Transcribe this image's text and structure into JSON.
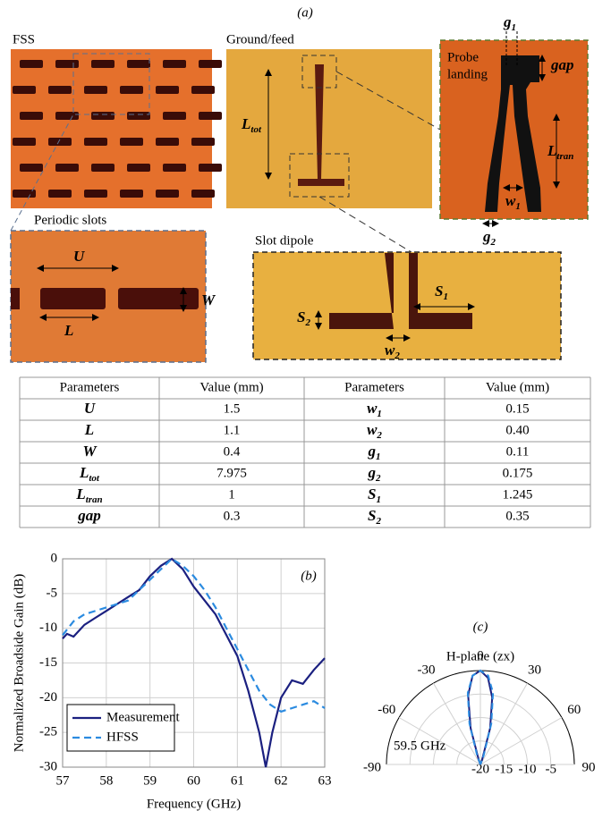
{
  "panel_a": {
    "label": "(a)",
    "fss": "FSS",
    "ground_feed": "Ground/feed",
    "probe_landing": [
      "Probe",
      "landing"
    ],
    "periodic_slots": "Periodic slots",
    "slot_dipole": "Slot dipole",
    "dims": {
      "g1": {
        "base": "g",
        "sub": "1"
      },
      "gap": {
        "base": "gap"
      },
      "L_tran": {
        "base": "L",
        "sub": "tran"
      },
      "w1": {
        "base": "w",
        "sub": "1"
      },
      "g2": {
        "base": "g",
        "sub": "2"
      },
      "L_tot": {
        "base": "L",
        "sub": "tot"
      },
      "U": {
        "base": "U"
      },
      "W": {
        "base": "W"
      },
      "L": {
        "base": "L"
      },
      "S1": {
        "base": "S",
        "sub": "1"
      },
      "S2": {
        "base": "S",
        "sub": "2"
      },
      "w2": {
        "base": "w",
        "sub": "2"
      }
    }
  },
  "table": {
    "header": [
      "Parameters",
      "Value (mm)",
      "Parameters",
      "Value (mm)"
    ],
    "rows": [
      [
        {
          "base": "U"
        },
        "1.5",
        {
          "base": "w",
          "sub": "1"
        },
        "0.15"
      ],
      [
        {
          "base": "L"
        },
        "1.1",
        {
          "base": "w",
          "sub": "2"
        },
        "0.40"
      ],
      [
        {
          "base": "W"
        },
        "0.4",
        {
          "base": "g",
          "sub": "1"
        },
        "0.11"
      ],
      [
        {
          "base": "L",
          "sub": "tot"
        },
        "7.975",
        {
          "base": "g",
          "sub": "2"
        },
        "0.175"
      ],
      [
        {
          "base": "L",
          "sub": "tran"
        },
        "1",
        {
          "base": "S",
          "sub": "1"
        },
        "1.245"
      ],
      [
        {
          "base": "gap"
        },
        "0.3",
        {
          "base": "S",
          "sub": "2"
        },
        "0.35"
      ]
    ]
  },
  "chart_data": [
    {
      "type": "line",
      "annotation": "(b)",
      "x_label": "Frequency (GHz)",
      "y_label": "Normalized Broadside Gain (dB)",
      "xlim": [
        57,
        63
      ],
      "ylim": [
        -30,
        0
      ],
      "xticks": [
        57,
        58,
        59,
        60,
        61,
        62,
        63
      ],
      "yticks": [
        0,
        -5,
        -10,
        -15,
        -20,
        -25,
        -30
      ],
      "grid": true,
      "legend": "lower left",
      "series": [
        {
          "name": "Measurement",
          "color": "#1b2080",
          "style": "solid",
          "x": [
            57,
            57.1,
            57.25,
            57.5,
            57.75,
            58,
            58.25,
            58.5,
            58.75,
            59,
            59.25,
            59.5,
            59.75,
            60,
            60.25,
            60.5,
            60.75,
            61,
            61.25,
            61.5,
            61.65,
            61.8,
            62,
            62.25,
            62.5,
            62.75,
            63
          ],
          "values": [
            -11.5,
            -10.8,
            -11.2,
            -9.5,
            -8.5,
            -7.5,
            -6.5,
            -5.5,
            -4.5,
            -2.5,
            -1,
            0,
            -1.5,
            -4,
            -6,
            -8,
            -11,
            -14,
            -19,
            -25,
            -30,
            -25,
            -20,
            -17.5,
            -18,
            -16,
            -14.3
          ]
        },
        {
          "name": "HFSS",
          "color": "#2b8be0",
          "style": "dashed",
          "x": [
            57,
            57.25,
            57.5,
            58,
            58.5,
            59,
            59.25,
            59.5,
            59.75,
            60,
            60.25,
            60.5,
            60.75,
            61,
            61.25,
            61.5,
            61.75,
            62,
            62.25,
            62.5,
            62.75,
            63
          ],
          "values": [
            -11,
            -9,
            -8,
            -7,
            -6,
            -3,
            -1.5,
            0,
            -1,
            -2.5,
            -4.5,
            -7,
            -10,
            -13,
            -16,
            -19,
            -21,
            -22,
            -21.5,
            -21,
            -20.5,
            -21.5
          ]
        }
      ]
    },
    {
      "type": "polar",
      "annotation": "(c)",
      "title": "H-plane (zx)",
      "label": "59.5 GHz",
      "label_color": "#d0202a",
      "thetalim": [
        -90,
        90
      ],
      "thetaticks": [
        -90,
        -60,
        -30,
        0,
        30,
        60,
        90
      ],
      "rlim": [
        -20,
        0
      ],
      "rticks": [
        -20,
        -15,
        -10,
        -5
      ],
      "theta": [
        -90,
        -60,
        -30,
        -20,
        -15,
        -10,
        -5,
        0,
        5,
        10,
        15,
        20,
        30,
        60,
        90
      ],
      "series": [
        {
          "color": "#1b2080",
          "style": "solid",
          "values": [
            -20,
            -20,
            -20,
            -19,
            -12,
            -5,
            -1,
            0,
            -1.5,
            -5.5,
            -12,
            -19,
            -20,
            -20,
            -20
          ]
        },
        {
          "color": "#2b8be0",
          "style": "dashed",
          "values": [
            -20,
            -20,
            -20,
            -18,
            -11,
            -4.5,
            -1,
            0,
            -1,
            -4.5,
            -11,
            -18,
            -20,
            -20,
            -20
          ]
        }
      ]
    }
  ]
}
